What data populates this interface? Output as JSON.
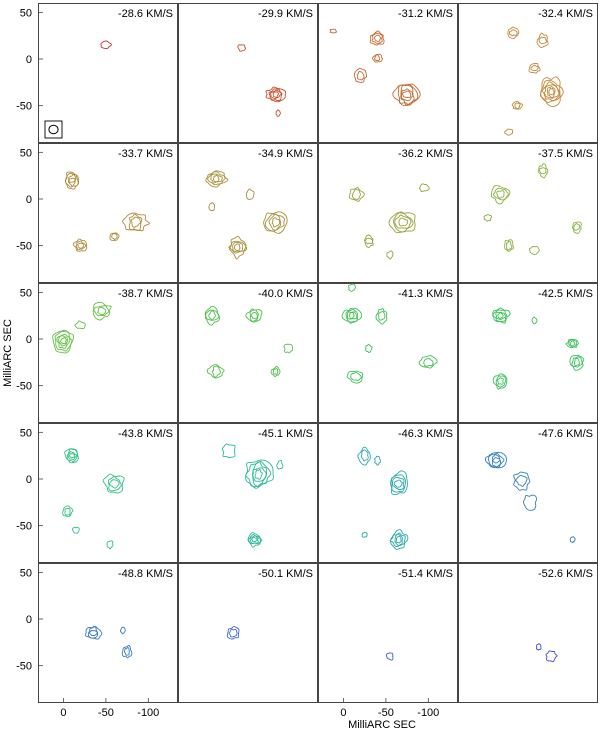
{
  "chart_data": {
    "type": "contour",
    "grid": {
      "rows": 5,
      "cols": 4
    },
    "xlabel": "MilliARC SEC",
    "ylabel": "MilliARC SEC",
    "x_ticks": [
      0,
      -50,
      -100
    ],
    "x_tick_labels": [
      "0",
      "-50",
      "-100"
    ],
    "y_ticks": [
      50,
      0,
      -50
    ],
    "y_tick_labels": [
      "50",
      "0",
      "-50"
    ],
    "xlim": [
      30,
      -135
    ],
    "ylim": [
      -90,
      60
    ],
    "beam_box": true,
    "panels": [
      {
        "label": "-28.6 KM/S",
        "color": "#c03030",
        "features": [
          [
            -50,
            15,
            5,
            1
          ]
        ]
      },
      {
        "label": "-29.9 KM/S",
        "color": "#c84a2a",
        "features": [
          [
            -45,
            12,
            4,
            1
          ],
          [
            -85,
            -38,
            9,
            4
          ],
          [
            -88,
            -58,
            3,
            1
          ]
        ]
      },
      {
        "label": "-31.2 KM/S",
        "color": "#c46a30",
        "features": [
          [
            -40,
            22,
            8,
            3
          ],
          [
            -20,
            -18,
            7,
            2
          ],
          [
            -75,
            -38,
            14,
            5
          ],
          [
            -40,
            1,
            5,
            2
          ],
          [
            12,
            30,
            3,
            1
          ]
        ]
      },
      {
        "label": "-32.4 KM/S",
        "color": "#c08838",
        "features": [
          [
            -35,
            28,
            6,
            2
          ],
          [
            -70,
            20,
            7,
            2
          ],
          [
            -80,
            -35,
            14,
            6
          ],
          [
            -40,
            -50,
            5,
            2
          ],
          [
            -60,
            -10,
            6,
            2
          ],
          [
            -30,
            -78,
            4,
            1
          ]
        ]
      },
      {
        "label": "-33.7 KM/S",
        "color": "#b08a3a",
        "features": [
          [
            -10,
            20,
            9,
            4
          ],
          [
            -85,
            -25,
            12,
            3
          ],
          [
            -20,
            -50,
            7,
            3
          ],
          [
            -60,
            -40,
            5,
            2
          ]
        ]
      },
      {
        "label": "-34.9 KM/S",
        "color": "#a6903a",
        "features": [
          [
            -15,
            22,
            10,
            4
          ],
          [
            -85,
            -25,
            13,
            4
          ],
          [
            -40,
            -52,
            10,
            4
          ],
          [
            -10,
            -8,
            4,
            1
          ],
          [
            -55,
            5,
            5,
            1
          ]
        ]
      },
      {
        "label": "-36.2 KM/S",
        "color": "#9aa03a",
        "features": [
          [
            -15,
            5,
            8,
            2
          ],
          [
            -70,
            -25,
            14,
            4
          ],
          [
            -30,
            -45,
            6,
            2
          ],
          [
            -95,
            12,
            5,
            1
          ],
          [
            -55,
            -60,
            4,
            1
          ]
        ]
      },
      {
        "label": "-37.5 KM/S",
        "color": "#88b040",
        "features": [
          [
            -20,
            5,
            10,
            3
          ],
          [
            -70,
            30,
            6,
            2
          ],
          [
            -30,
            -50,
            6,
            2
          ],
          [
            -60,
            -55,
            5,
            1
          ],
          [
            -110,
            -30,
            6,
            2
          ],
          [
            -5,
            -20,
            4,
            1
          ]
        ]
      },
      {
        "label": "-38.7 KM/S",
        "color": "#60c040",
        "features": [
          [
            0,
            -2,
            12,
            5
          ],
          [
            -45,
            30,
            10,
            3
          ],
          [
            -20,
            15,
            5,
            1
          ]
        ]
      },
      {
        "label": "-40.0 KM/S",
        "color": "#4ec048",
        "features": [
          [
            -10,
            25,
            9,
            3
          ],
          [
            -60,
            25,
            8,
            3
          ],
          [
            -15,
            -35,
            8,
            2
          ],
          [
            -100,
            -10,
            5,
            1
          ],
          [
            -85,
            -35,
            5,
            2
          ]
        ]
      },
      {
        "label": "-41.3 KM/S",
        "color": "#3ec050",
        "features": [
          [
            -10,
            25,
            9,
            4
          ],
          [
            -45,
            25,
            7,
            2
          ],
          [
            -15,
            -40,
            8,
            2
          ],
          [
            -100,
            -25,
            8,
            2
          ],
          [
            -30,
            -10,
            4,
            1
          ],
          [
            -10,
            55,
            4,
            1
          ]
        ]
      },
      {
        "label": "-42.5 KM/S",
        "color": "#38c058",
        "features": [
          [
            -20,
            25,
            9,
            4
          ],
          [
            -105,
            -5,
            6,
            3
          ],
          [
            -110,
            -25,
            8,
            3
          ],
          [
            -20,
            -45,
            8,
            3
          ],
          [
            -60,
            20,
            3,
            1
          ]
        ]
      },
      {
        "label": "-43.8 KM/S",
        "color": "#30c080",
        "features": [
          [
            -10,
            25,
            8,
            4
          ],
          [
            -60,
            -5,
            11,
            3
          ],
          [
            -5,
            -35,
            6,
            2
          ],
          [
            -15,
            -55,
            4,
            1
          ],
          [
            -55,
            -70,
            4,
            1
          ]
        ]
      },
      {
        "label": "-45.1 KM/S",
        "color": "#28b898",
        "features": [
          [
            -30,
            30,
            8,
            1
          ],
          [
            -65,
            5,
            16,
            5
          ],
          [
            -60,
            -65,
            8,
            4
          ],
          [
            -90,
            15,
            4,
            1
          ]
        ]
      },
      {
        "label": "-46.3 KM/S",
        "color": "#28a8a8",
        "features": [
          [
            -25,
            25,
            8,
            2
          ],
          [
            -65,
            -5,
            12,
            4
          ],
          [
            -65,
            -65,
            10,
            4
          ],
          [
            -40,
            20,
            4,
            1
          ],
          [
            -25,
            -60,
            3,
            1
          ]
        ]
      },
      {
        "label": "-47.6 KM/S",
        "color": "#3080b8",
        "features": [
          [
            -15,
            20,
            10,
            4
          ],
          [
            -45,
            -2,
            10,
            2
          ],
          [
            -55,
            -25,
            8,
            1
          ],
          [
            -105,
            -65,
            3,
            1
          ]
        ]
      },
      {
        "label": "-48.8 KM/S",
        "color": "#3a78c8",
        "features": [
          [
            -35,
            -15,
            8,
            3
          ],
          [
            -75,
            -35,
            6,
            2
          ],
          [
            -70,
            -12,
            3,
            1
          ]
        ]
      },
      {
        "label": "-50.1 KM/S",
        "color": "#3a6ad0",
        "features": [
          [
            -35,
            -15,
            7,
            2
          ]
        ]
      },
      {
        "label": "-51.4 KM/S",
        "color": "#3a58d8",
        "features": [
          [
            -55,
            -40,
            4,
            1
          ]
        ]
      },
      {
        "label": "-52.6 KM/S",
        "color": "#3848e0",
        "features": [
          [
            -65,
            -30,
            3,
            1
          ],
          [
            -80,
            -40,
            6,
            1
          ]
        ]
      }
    ]
  }
}
